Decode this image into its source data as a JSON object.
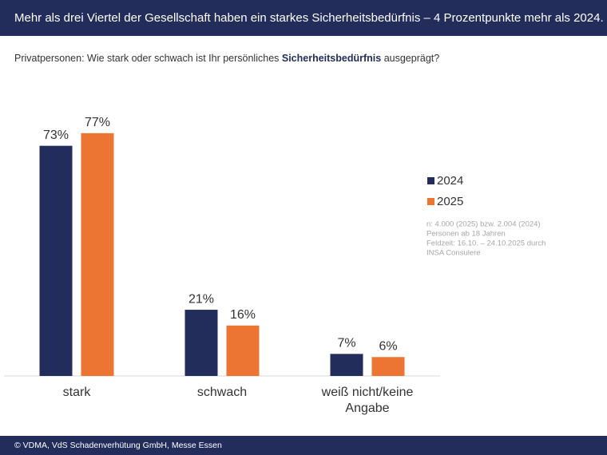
{
  "chart_data": {
    "type": "bar",
    "title": "Mehr als drei Viertel der Gesellschaft haben ein starkes Sicherheitsbedürfnis – 4 Prozentpunkte mehr als 2024.",
    "subtitle": [
      "Privatpersonen: Wie stark oder schwach ist Ihr persönliches ",
      "Sicherheitsbedürfnis",
      " ausgeprägt?"
    ],
    "categories": [
      "stark",
      "schwach",
      "weiß nicht/keine Angabe"
    ],
    "series": [
      {
        "name": "2024",
        "color": "#232d5c",
        "values": [
          73,
          21,
          7
        ],
        "value_labels": [
          "73%",
          "21%",
          "7%"
        ]
      },
      {
        "name": "2025",
        "color": "#ec7533",
        "values": [
          77,
          16,
          6
        ],
        "value_labels": [
          "77%",
          "16%",
          "6%"
        ]
      }
    ],
    "note": [
      "n: 4.000 (2025) bzw. 2.004 (2024)",
      "Personen ab 18 Jahren",
      "Feldzeit: 16.10. – 24.10.2025 durch",
      "INSA Consulere"
    ],
    "footer": "© VDMA, VdS Schadenverhütung GmbH, Messe Essen"
  }
}
